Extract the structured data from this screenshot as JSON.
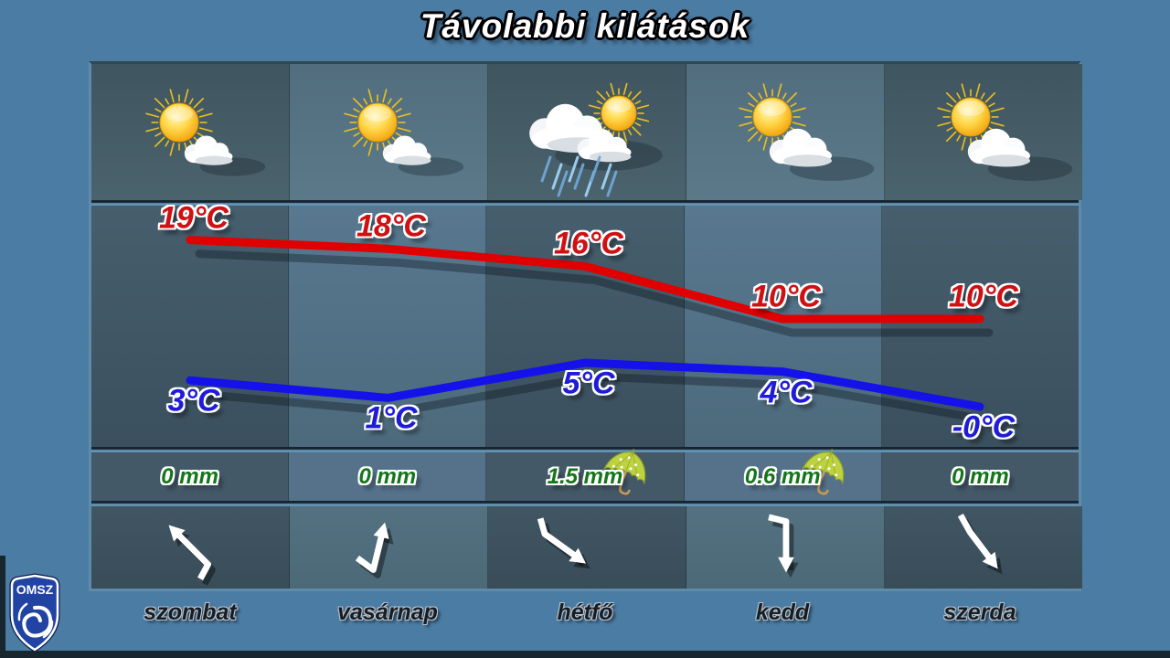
{
  "title": "Távolabbi kilátások",
  "logo": {
    "text": "OMSZ"
  },
  "colors": {
    "background": "#4b7ca4",
    "max_line": "#e00000",
    "min_line": "#1412e8",
    "max_text": "#d01114",
    "min_text": "#1f1cd9",
    "precip_text": "#15751b",
    "title_text": "#ffffff",
    "day_text": "#181d24"
  },
  "chart_data": {
    "type": "line",
    "title": "Távolabbi kilátások",
    "categories": [
      "szombat",
      "vasárnap",
      "hétfő",
      "kedd",
      "szerda"
    ],
    "unit": "°C",
    "ylim": [
      -2,
      21
    ],
    "grid": false,
    "legend": "none",
    "series": [
      {
        "name": "maximum temperature",
        "color": "#e00000",
        "values": [
          19,
          18,
          16,
          10,
          10
        ],
        "labels": [
          "19°C",
          "18°C",
          "16°C",
          "10°C",
          "10°C"
        ]
      },
      {
        "name": "minimum temperature",
        "color": "#1412e8",
        "values": [
          3,
          1,
          5,
          4,
          0
        ],
        "labels": [
          "3°C",
          "1°C",
          "5°C",
          "4°C",
          "-0°C"
        ]
      }
    ],
    "precipitation_mm": [
      0,
      0,
      1.5,
      0.6,
      0
    ]
  },
  "days": [
    {
      "name": "szombat",
      "icon": "sun-small-cloud",
      "precip_label": "0 mm",
      "precip_mm": 0,
      "wind": {
        "direction": "northwest"
      }
    },
    {
      "name": "vasárnap",
      "icon": "sun-small-cloud",
      "precip_label": "0 mm",
      "precip_mm": 0,
      "wind": {
        "direction": "north"
      }
    },
    {
      "name": "hétfő",
      "icon": "cloud-sun-rain",
      "precip_label": "1.5 mm",
      "precip_mm": 1.5,
      "wind": {
        "direction": "southeast"
      }
    },
    {
      "name": "kedd",
      "icon": "sun-cloud",
      "precip_label": "0.6 mm",
      "precip_mm": 0.6,
      "wind": {
        "direction": "south"
      }
    },
    {
      "name": "szerda",
      "icon": "sun-cloud",
      "precip_label": "0 mm",
      "precip_mm": 0,
      "wind": {
        "direction": "south-southeast"
      }
    }
  ]
}
